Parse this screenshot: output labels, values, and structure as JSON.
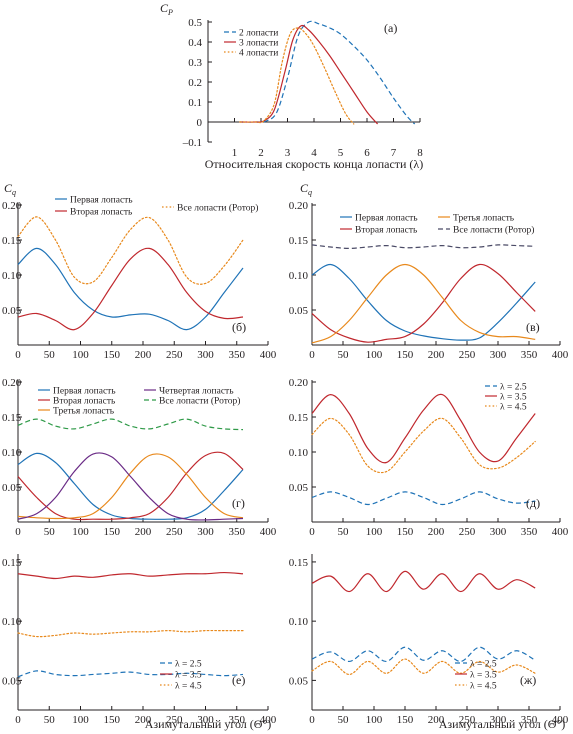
{
  "colors": {
    "blue": "#1f73b7",
    "red": "#c0282e",
    "orange": "#e8891c",
    "purple": "#6a2b86",
    "green": "#2f9a48",
    "gray": "#4a4a66",
    "axis": "#231f20"
  },
  "chart_data": [
    {
      "id": "a",
      "type": "line",
      "panel_label": "(а)",
      "ylabel": "C",
      "ylabel_sub": "P",
      "xlabel": "Относительная скорость конца лопасти (λ)",
      "xlim": [
        0,
        8
      ],
      "ylim": [
        -0.1,
        0.5
      ],
      "xticks": [
        1,
        2,
        3,
        4,
        5,
        6,
        7,
        8
      ],
      "yticks": [
        -0.1,
        0,
        0.1,
        0.2,
        0.3,
        0.4,
        0.5
      ],
      "ytick_labels": [
        "–0.1",
        "0",
        "0.1",
        "0.2",
        "0.3",
        "0.4",
        "0.5"
      ],
      "legend_position": "top-left",
      "series": [
        {
          "name": "2 лопасти",
          "color": "blue",
          "dash": "dashed",
          "x": [
            1.2,
            1.8,
            2.2,
            2.6,
            3.0,
            3.4,
            3.8,
            4.2,
            4.6,
            5.0,
            5.5,
            6.0,
            6.5,
            7.0,
            7.5,
            7.8
          ],
          "y": [
            0,
            0,
            0.005,
            0.05,
            0.22,
            0.43,
            0.5,
            0.49,
            0.47,
            0.44,
            0.38,
            0.31,
            0.22,
            0.12,
            0.03,
            -0.01
          ]
        },
        {
          "name": "3 лопасти",
          "color": "red",
          "dash": "solid",
          "x": [
            1.2,
            1.8,
            2.1,
            2.5,
            2.9,
            3.2,
            3.5,
            3.8,
            4.2,
            4.6,
            5.0,
            5.5,
            6.0,
            6.4
          ],
          "y": [
            0,
            0,
            0.005,
            0.06,
            0.25,
            0.41,
            0.48,
            0.46,
            0.4,
            0.33,
            0.25,
            0.15,
            0.05,
            -0.01
          ]
        },
        {
          "name": "4 лопасти",
          "color": "orange",
          "dash": "dotted",
          "x": [
            1.2,
            1.8,
            2.1,
            2.5,
            2.8,
            3.1,
            3.4,
            3.7,
            4.0,
            4.4,
            4.8,
            5.2,
            5.5
          ],
          "y": [
            0,
            0,
            0.005,
            0.09,
            0.3,
            0.44,
            0.47,
            0.44,
            0.38,
            0.27,
            0.15,
            0.04,
            -0.01
          ]
        }
      ]
    },
    {
      "id": "b",
      "type": "line",
      "panel_label": "(б)",
      "ylabel": "C",
      "ylabel_sub": "q",
      "xlabel": "",
      "xlim": [
        0,
        400
      ],
      "ylim": [
        0,
        0.2
      ],
      "xticks": [
        0,
        50,
        100,
        150,
        200,
        250,
        300,
        350,
        400
      ],
      "yticks": [
        0.05,
        0.1,
        0.15,
        0.2
      ],
      "ytick_labels": [
        "0.05",
        "0.10",
        "0.15",
        "0.20"
      ],
      "legend_position": "top",
      "series": [
        {
          "name": "Первая лопасть",
          "color": "blue",
          "dash": "solid",
          "x": [
            0,
            30,
            60,
            90,
            120,
            150,
            180,
            210,
            240,
            270,
            300,
            330,
            360
          ],
          "y": [
            0.115,
            0.138,
            0.115,
            0.075,
            0.05,
            0.04,
            0.043,
            0.044,
            0.035,
            0.022,
            0.04,
            0.075,
            0.11
          ]
        },
        {
          "name": "Вторая лопасть",
          "color": "red",
          "dash": "solid",
          "x": [
            0,
            30,
            60,
            90,
            120,
            150,
            180,
            210,
            240,
            270,
            300,
            330,
            360
          ],
          "y": [
            0.04,
            0.045,
            0.035,
            0.022,
            0.045,
            0.085,
            0.123,
            0.138,
            0.115,
            0.075,
            0.048,
            0.038,
            0.04
          ]
        },
        {
          "name": "Все лопасти (Ротор)",
          "color": "orange",
          "dash": "dotted",
          "x": [
            0,
            30,
            60,
            90,
            120,
            150,
            180,
            210,
            240,
            270,
            300,
            330,
            360
          ],
          "y": [
            0.155,
            0.183,
            0.15,
            0.097,
            0.09,
            0.125,
            0.165,
            0.182,
            0.15,
            0.097,
            0.088,
            0.113,
            0.15
          ]
        }
      ]
    },
    {
      "id": "v",
      "type": "line",
      "panel_label": "(в)",
      "ylabel": "C",
      "ylabel_sub": "q",
      "xlabel": "",
      "xlim": [
        0,
        400
      ],
      "ylim": [
        0,
        0.2
      ],
      "xticks": [
        0,
        50,
        100,
        150,
        200,
        250,
        300,
        350,
        400
      ],
      "yticks": [
        0.05,
        0.1,
        0.15,
        0.2
      ],
      "ytick_labels": [
        "0.05",
        "0.10",
        "0.15",
        "0.20"
      ],
      "legend_position": "top",
      "series": [
        {
          "name": "Первая лопасть",
          "color": "blue",
          "dash": "solid",
          "x": [
            0,
            30,
            60,
            90,
            120,
            150,
            180,
            210,
            240,
            270,
            300,
            330,
            360
          ],
          "y": [
            0.1,
            0.115,
            0.095,
            0.063,
            0.035,
            0.02,
            0.013,
            0.009,
            0.007,
            0.01,
            0.032,
            0.06,
            0.09
          ]
        },
        {
          "name": "Вторая лопасть",
          "color": "red",
          "dash": "solid",
          "x": [
            0,
            30,
            60,
            90,
            120,
            150,
            180,
            210,
            240,
            270,
            300,
            330,
            360
          ],
          "y": [
            0.045,
            0.022,
            0.01,
            0.004,
            0.008,
            0.012,
            0.03,
            0.06,
            0.095,
            0.115,
            0.102,
            0.075,
            0.048
          ]
        },
        {
          "name": "Третья лопасть",
          "color": "orange",
          "dash": "solid",
          "x": [
            0,
            30,
            60,
            90,
            120,
            150,
            180,
            210,
            240,
            270,
            300,
            330,
            360
          ],
          "y": [
            0.003,
            0.012,
            0.035,
            0.068,
            0.1,
            0.115,
            0.1,
            0.068,
            0.035,
            0.018,
            0.012,
            0.012,
            0.008
          ]
        },
        {
          "name": "Все лопасти (Ротор)",
          "color": "gray",
          "dash": "dashed",
          "x": [
            0,
            30,
            60,
            90,
            120,
            150,
            180,
            210,
            240,
            270,
            300,
            330,
            360
          ],
          "y": [
            0.143,
            0.14,
            0.138,
            0.14,
            0.142,
            0.139,
            0.14,
            0.142,
            0.139,
            0.14,
            0.143,
            0.142,
            0.141
          ]
        }
      ]
    },
    {
      "id": "g",
      "type": "line",
      "panel_label": "(г)",
      "ylabel": "",
      "xlabel": "",
      "xlim": [
        0,
        400
      ],
      "ylim": [
        0,
        0.2
      ],
      "xticks": [
        0,
        50,
        100,
        150,
        200,
        250,
        300,
        350,
        400
      ],
      "yticks": [
        0.05,
        0.1,
        0.15,
        0.2
      ],
      "ytick_labels": [
        "0.05",
        "0.10",
        "0.15",
        "0.20"
      ],
      "legend_position": "top",
      "series": [
        {
          "name": "Первая лопасть",
          "color": "blue",
          "dash": "solid",
          "x": [
            0,
            30,
            60,
            90,
            120,
            150,
            180,
            210,
            240,
            270,
            300,
            330,
            360
          ],
          "y": [
            0.082,
            0.098,
            0.085,
            0.055,
            0.025,
            0.01,
            0.005,
            0.004,
            0.004,
            0.006,
            0.018,
            0.045,
            0.075
          ]
        },
        {
          "name": "Вторая лопасть",
          "color": "red",
          "dash": "solid",
          "x": [
            0,
            30,
            60,
            90,
            120,
            150,
            180,
            210,
            240,
            270,
            300,
            330,
            360
          ],
          "y": [
            0.065,
            0.035,
            0.012,
            0.004,
            0.004,
            0.004,
            0.006,
            0.012,
            0.035,
            0.07,
            0.095,
            0.098,
            0.075
          ]
        },
        {
          "name": "Третья лопасть",
          "color": "orange",
          "dash": "solid",
          "x": [
            0,
            30,
            60,
            90,
            120,
            150,
            180,
            210,
            240,
            270,
            300,
            330,
            360
          ],
          "y": [
            0.008,
            0.006,
            0.005,
            0.006,
            0.012,
            0.035,
            0.07,
            0.095,
            0.093,
            0.068,
            0.035,
            0.012,
            0.006
          ]
        },
        {
          "name": "Четвертая лопасть",
          "color": "purple",
          "dash": "solid",
          "x": [
            0,
            30,
            60,
            90,
            120,
            150,
            180,
            210,
            240,
            270,
            300,
            330,
            360
          ],
          "y": [
            0.004,
            0.012,
            0.035,
            0.072,
            0.097,
            0.093,
            0.065,
            0.035,
            0.012,
            0.004,
            0.003,
            0.004,
            0.005
          ]
        },
        {
          "name": "Все лопасти (Ротор)",
          "color": "green",
          "dash": "dashed",
          "x": [
            0,
            30,
            60,
            90,
            120,
            150,
            180,
            210,
            240,
            270,
            300,
            330,
            360
          ],
          "y": [
            0.138,
            0.147,
            0.137,
            0.133,
            0.14,
            0.147,
            0.137,
            0.133,
            0.14,
            0.147,
            0.137,
            0.133,
            0.132
          ]
        }
      ]
    },
    {
      "id": "d",
      "type": "line",
      "panel_label": "(д)",
      "ylabel": "",
      "xlabel": "",
      "xlim": [
        0,
        400
      ],
      "ylim": [
        0,
        0.2
      ],
      "xticks": [
        0,
        50,
        100,
        150,
        200,
        250,
        300,
        350,
        400
      ],
      "yticks": [
        0.05,
        0.1,
        0.15,
        0.2
      ],
      "ytick_labels": [
        "0.05",
        "0.10",
        "0.15",
        "0.20"
      ],
      "legend_position": "top-right",
      "series": [
        {
          "name": "λ = 2.5",
          "color": "blue",
          "dash": "dashed",
          "x": [
            0,
            30,
            60,
            90,
            120,
            150,
            180,
            210,
            240,
            270,
            300,
            330,
            360
          ],
          "y": [
            0.035,
            0.043,
            0.035,
            0.025,
            0.034,
            0.043,
            0.035,
            0.025,
            0.033,
            0.043,
            0.033,
            0.027,
            0.03
          ]
        },
        {
          "name": "λ = 3.5",
          "color": "red",
          "dash": "solid",
          "x": [
            0,
            30,
            60,
            90,
            120,
            150,
            180,
            210,
            240,
            270,
            300,
            330,
            360
          ],
          "y": [
            0.155,
            0.182,
            0.155,
            0.105,
            0.085,
            0.12,
            0.16,
            0.182,
            0.145,
            0.1,
            0.087,
            0.12,
            0.155
          ]
        },
        {
          "name": "λ = 4.5",
          "color": "orange",
          "dash": "dotted",
          "x": [
            0,
            30,
            60,
            90,
            120,
            150,
            180,
            210,
            240,
            270,
            300,
            330,
            360
          ],
          "y": [
            0.125,
            0.148,
            0.125,
            0.08,
            0.072,
            0.1,
            0.13,
            0.148,
            0.12,
            0.082,
            0.077,
            0.092,
            0.115
          ]
        }
      ]
    },
    {
      "id": "e",
      "type": "line",
      "panel_label": "(е)",
      "ylabel": "",
      "xlabel": "Азимутальный угол (Θ°)",
      "xlim": [
        0,
        400
      ],
      "ylim": [
        0.025,
        0.155
      ],
      "xticks": [
        0,
        50,
        100,
        150,
        200,
        250,
        300,
        350,
        400
      ],
      "yticks": [
        0.05,
        0.1,
        0.15
      ],
      "ytick_labels": [
        "0.05",
        "0.10",
        "0.15"
      ],
      "legend_position": "bottom-right",
      "series": [
        {
          "name": "λ = 2.5",
          "color": "blue",
          "dash": "dashed",
          "x": [
            0,
            30,
            60,
            90,
            120,
            150,
            180,
            210,
            240,
            270,
            300,
            330,
            360
          ],
          "y": [
            0.053,
            0.058,
            0.055,
            0.054,
            0.055,
            0.056,
            0.057,
            0.055,
            0.055,
            0.056,
            0.055,
            0.054,
            0.055
          ]
        },
        {
          "name": "λ = 3.5",
          "color": "red",
          "dash": "solid",
          "x": [
            0,
            30,
            60,
            90,
            120,
            150,
            180,
            210,
            240,
            270,
            300,
            330,
            360
          ],
          "y": [
            0.14,
            0.138,
            0.136,
            0.138,
            0.137,
            0.139,
            0.14,
            0.138,
            0.139,
            0.14,
            0.14,
            0.141,
            0.14
          ]
        },
        {
          "name": "λ = 4.5",
          "color": "orange",
          "dash": "dotted",
          "x": [
            0,
            30,
            60,
            90,
            120,
            150,
            180,
            210,
            240,
            270,
            300,
            330,
            360
          ],
          "y": [
            0.09,
            0.087,
            0.088,
            0.09,
            0.089,
            0.09,
            0.091,
            0.091,
            0.092,
            0.091,
            0.092,
            0.092,
            0.092
          ]
        }
      ]
    },
    {
      "id": "zh",
      "type": "line",
      "panel_label": "(ж)",
      "ylabel": "",
      "xlabel": "Азимутальный угол (Θ°)",
      "xlim": [
        0,
        400
      ],
      "ylim": [
        0.025,
        0.155
      ],
      "xticks": [
        0,
        50,
        100,
        150,
        200,
        250,
        300,
        350,
        400
      ],
      "yticks": [
        0.05,
        0.1,
        0.15
      ],
      "ytick_labels": [
        "0.05",
        "0.10",
        "0.15"
      ],
      "legend_position": "bottom-right",
      "series": [
        {
          "name": "λ = 2.5",
          "color": "blue",
          "dash": "dashed",
          "x": [
            0,
            30,
            60,
            90,
            120,
            150,
            180,
            210,
            240,
            270,
            300,
            330,
            360
          ],
          "y": [
            0.068,
            0.074,
            0.066,
            0.075,
            0.066,
            0.078,
            0.067,
            0.075,
            0.066,
            0.078,
            0.068,
            0.075,
            0.067
          ]
        },
        {
          "name": "λ = 3.5",
          "color": "red",
          "dash": "solid",
          "x": [
            0,
            30,
            60,
            90,
            120,
            150,
            180,
            210,
            240,
            270,
            300,
            330,
            360
          ],
          "y": [
            0.132,
            0.138,
            0.125,
            0.14,
            0.125,
            0.142,
            0.127,
            0.14,
            0.125,
            0.14,
            0.127,
            0.135,
            0.128
          ]
        },
        {
          "name": "λ = 4.5",
          "color": "orange",
          "dash": "dotted",
          "x": [
            0,
            30,
            60,
            90,
            120,
            150,
            180,
            210,
            240,
            270,
            300,
            330,
            360
          ],
          "y": [
            0.058,
            0.066,
            0.055,
            0.066,
            0.056,
            0.068,
            0.056,
            0.066,
            0.056,
            0.066,
            0.057,
            0.063,
            0.056
          ]
        }
      ]
    }
  ]
}
